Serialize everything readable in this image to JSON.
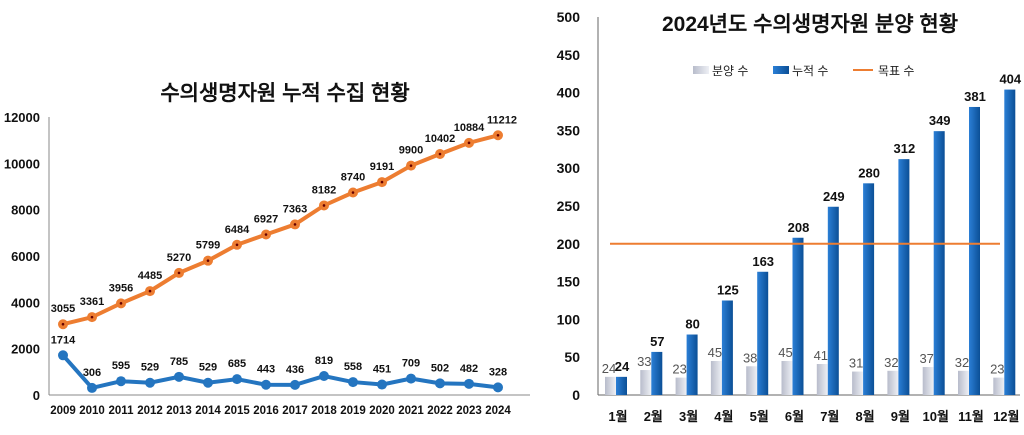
{
  "chart_data": [
    {
      "type": "line",
      "title": "수의생명자원 누적 수집 현황",
      "categories": [
        "2009",
        "2010",
        "2011",
        "2012",
        "2013",
        "2014",
        "2015",
        "2016",
        "2017",
        "2018",
        "2019",
        "2020",
        "2021",
        "2022",
        "2023",
        "2024"
      ],
      "ylim": [
        0,
        12000
      ],
      "yticks": [
        0,
        2000,
        4000,
        6000,
        8000,
        10000,
        12000
      ],
      "grid": false,
      "series": [
        {
          "color": "#ED7D31",
          "values": [
            3055,
            3361,
            3956,
            4485,
            5270,
            5799,
            6484,
            6927,
            7363,
            8182,
            8740,
            9191,
            9900,
            10402,
            10884,
            11212
          ]
        },
        {
          "color": "#2475C0",
          "values": [
            1714,
            306,
            595,
            529,
            785,
            529,
            685,
            443,
            436,
            819,
            558,
            451,
            709,
            502,
            482,
            328
          ]
        }
      ]
    },
    {
      "type": "bar",
      "title": "2024년도 수의생명자원 분양 현황",
      "categories": [
        "1월",
        "2월",
        "3월",
        "4월",
        "5월",
        "6월",
        "7월",
        "8월",
        "9월",
        "10월",
        "11월",
        "12월"
      ],
      "ylim": [
        0,
        500
      ],
      "yticks": [
        0,
        50,
        100,
        150,
        200,
        250,
        300,
        350,
        400,
        450,
        500
      ],
      "grid": false,
      "legend_position": "top",
      "series": [
        {
          "name": "분양 수",
          "color": "#C9CCD8",
          "values": [
            24,
            33,
            23,
            45,
            38,
            45,
            41,
            31,
            32,
            37,
            32,
            23
          ]
        },
        {
          "name": "누적 수",
          "color": "#1565B8",
          "values": [
            24,
            57,
            80,
            125,
            163,
            208,
            249,
            280,
            312,
            349,
            381,
            404
          ]
        },
        {
          "name": "목표 수",
          "color": "#ED7D31",
          "type": "line",
          "value": 200
        }
      ]
    }
  ]
}
